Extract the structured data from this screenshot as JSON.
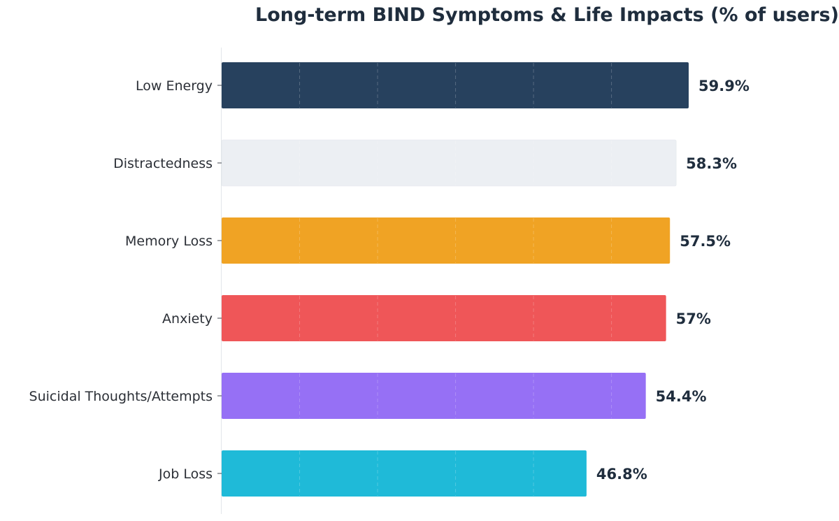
{
  "chart_data": {
    "type": "bar",
    "orientation": "horizontal",
    "title": "Long-term BIND Symptoms & Life Impacts (% of users)",
    "xlabel": "",
    "ylabel": "",
    "categories": [
      "Low Energy",
      "Distractedness",
      "Memory Loss",
      "Anxiety",
      "Suicidal Thoughts/Attempts",
      "Job Loss"
    ],
    "values": [
      59.9,
      58.3,
      57.5,
      57,
      54.4,
      46.8
    ],
    "value_labels": [
      "59.9%",
      "58.3%",
      "57.5%",
      "57%",
      "54.4%",
      "46.8%"
    ],
    "colors": [
      "#27415e",
      "#eceff3",
      "#f0a324",
      "#ef5658",
      "#9670f5",
      "#1fbad8"
    ],
    "xlim": [
      0,
      60
    ],
    "grid": true,
    "legend": "none"
  }
}
